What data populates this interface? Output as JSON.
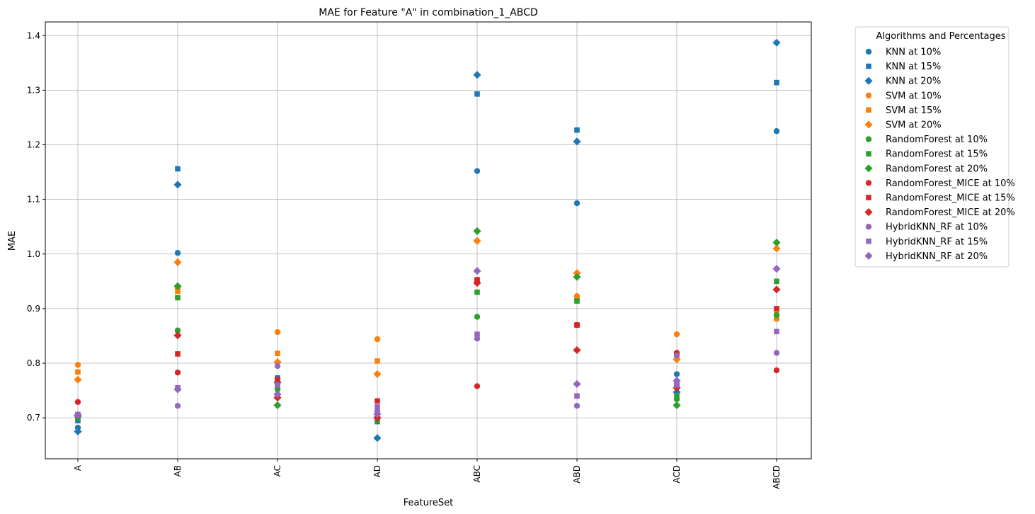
{
  "chart_data": {
    "type": "scatter",
    "title": "MAE for Feature \"A\" in combination_1_ABCD",
    "xlabel": "FeatureSet",
    "ylabel": "MAE",
    "categories": [
      "A",
      "AB",
      "AC",
      "AD",
      "ABC",
      "ABD",
      "ACD",
      "ABCD"
    ],
    "ylim": [
      0.625,
      1.425
    ],
    "yticks": [
      0.7,
      0.8,
      0.9,
      1.0,
      1.1,
      1.2,
      1.3,
      1.4
    ],
    "ytick_labels": [
      "0.7",
      "0.8",
      "0.9",
      "1.0",
      "1.1",
      "1.2",
      "1.3",
      "1.4"
    ],
    "grid": true,
    "legend": {
      "title": "Algorithms and Percentages",
      "placement": "outside-right"
    },
    "series": [
      {
        "name": "KNN at 10%",
        "color": "#1f77b4",
        "marker": "circle",
        "values": [
          0.682,
          1.002,
          0.772,
          0.7,
          1.152,
          1.093,
          0.78,
          1.225
        ]
      },
      {
        "name": "KNN at 15%",
        "color": "#1f77b4",
        "marker": "square",
        "values": [
          0.695,
          1.156,
          0.773,
          0.693,
          1.293,
          1.227,
          0.757,
          1.314
        ]
      },
      {
        "name": "KNN at 20%",
        "color": "#1f77b4",
        "marker": "diamond",
        "values": [
          0.675,
          1.127,
          0.765,
          0.663,
          1.328,
          1.206,
          0.747,
          1.387
        ]
      },
      {
        "name": "SVM at 10%",
        "color": "#ff7f0e",
        "marker": "circle",
        "values": [
          0.797,
          0.937,
          0.857,
          0.844,
          0.952,
          0.923,
          0.853,
          0.881
        ]
      },
      {
        "name": "SVM at 15%",
        "color": "#ff7f0e",
        "marker": "square",
        "values": [
          0.784,
          0.932,
          0.818,
          0.804,
          0.95,
          0.92,
          0.814,
          0.89
        ]
      },
      {
        "name": "SVM at 20%",
        "color": "#ff7f0e",
        "marker": "diamond",
        "values": [
          0.77,
          0.985,
          0.802,
          0.78,
          1.024,
          0.965,
          0.807,
          1.01
        ]
      },
      {
        "name": "RandomForest at 10%",
        "color": "#2ca02c",
        "marker": "circle",
        "values": [
          0.703,
          0.86,
          0.752,
          0.699,
          0.885,
          0.87,
          0.734,
          0.888
        ]
      },
      {
        "name": "RandomForest at 15%",
        "color": "#2ca02c",
        "marker": "square",
        "values": [
          0.7,
          0.92,
          0.756,
          0.695,
          0.93,
          0.914,
          0.74,
          0.95
        ]
      },
      {
        "name": "RandomForest at 20%",
        "color": "#2ca02c",
        "marker": "diamond",
        "values": [
          0.703,
          0.941,
          0.723,
          0.7,
          1.042,
          0.958,
          0.723,
          1.021
        ]
      },
      {
        "name": "RandomForest_MICE at 10%",
        "color": "#d62728",
        "marker": "circle",
        "values": [
          0.729,
          0.783,
          0.763,
          0.701,
          0.758,
          0.87,
          0.819,
          0.787
        ]
      },
      {
        "name": "RandomForest_MICE at 15%",
        "color": "#d62728",
        "marker": "square",
        "values": [
          0.705,
          0.817,
          0.77,
          0.731,
          0.953,
          0.87,
          0.762,
          0.9
        ]
      },
      {
        "name": "RandomForest_MICE at 20%",
        "color": "#d62728",
        "marker": "diamond",
        "values": [
          0.705,
          0.851,
          0.737,
          0.7,
          0.947,
          0.824,
          0.755,
          0.935
        ]
      },
      {
        "name": "HybridKNN_RF at 10%",
        "color": "#9467bd",
        "marker": "circle",
        "values": [
          0.705,
          0.722,
          0.795,
          0.712,
          0.845,
          0.722,
          0.814,
          0.819
        ]
      },
      {
        "name": "HybridKNN_RF at 15%",
        "color": "#9467bd",
        "marker": "square",
        "values": [
          0.706,
          0.755,
          0.76,
          0.72,
          0.853,
          0.74,
          0.76,
          0.858
        ]
      },
      {
        "name": "HybridKNN_RF at 20%",
        "color": "#9467bd",
        "marker": "diamond",
        "values": [
          0.705,
          0.752,
          0.743,
          0.707,
          0.969,
          0.762,
          0.768,
          0.973
        ]
      }
    ]
  }
}
